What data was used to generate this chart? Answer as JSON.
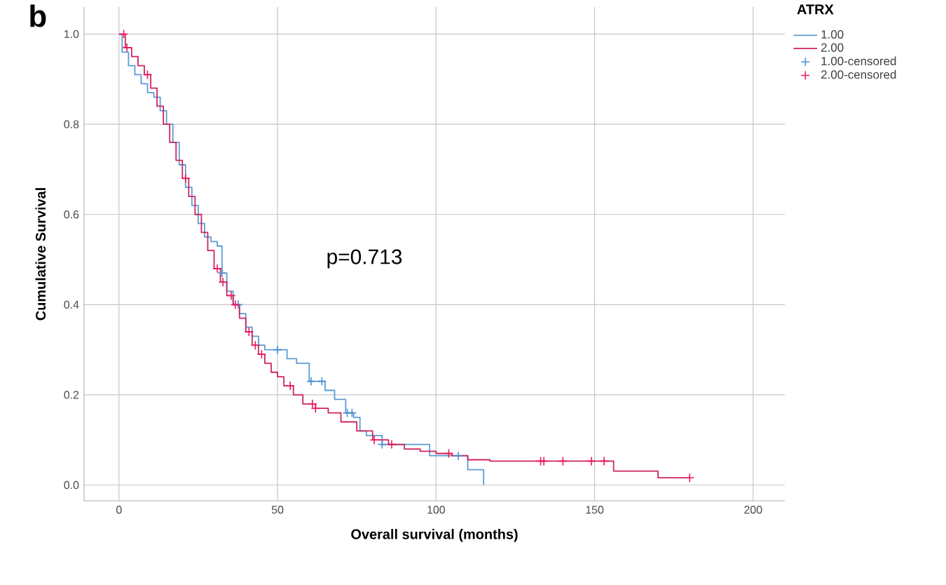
{
  "chart_data": {
    "type": "step",
    "title": "b",
    "xlabel": "Overall survival (months)",
    "ylabel": "Cumulative Survival",
    "legend_title": "ATRX",
    "annotations": [
      "p=0.713"
    ],
    "xlim": [
      -11,
      210
    ],
    "ylim": [
      -0.035,
      1.06
    ],
    "xticks": [
      0,
      50,
      100,
      150,
      200
    ],
    "yticks": [
      {
        "value": 0,
        "label": "0.0"
      },
      {
        "value": 0.2,
        "label": "0.2"
      },
      {
        "value": 0.4,
        "label": "0.4"
      },
      {
        "value": 0.6,
        "label": "0.6"
      },
      {
        "value": 0.8,
        "label": "0.8"
      },
      {
        "value": 1,
        "label": "1.0"
      }
    ],
    "grid": true,
    "legend": "top right",
    "line_style": "solid",
    "series": [
      {
        "name": "1.00",
        "color": "#5b9bd5",
        "marker": "none",
        "x": [
          0,
          1,
          3,
          5,
          7,
          9,
          11,
          13,
          15,
          17,
          19,
          21,
          23,
          25,
          27,
          29,
          31,
          32.5,
          34,
          36,
          38,
          40,
          42,
          44,
          46,
          50,
          53,
          56,
          60,
          63,
          65,
          68,
          71.5,
          74,
          76,
          78,
          83,
          90,
          98,
          110,
          115
        ],
        "values": [
          1.0,
          0.96,
          0.93,
          0.91,
          0.89,
          0.87,
          0.86,
          0.83,
          0.8,
          0.76,
          0.71,
          0.66,
          0.62,
          0.58,
          0.55,
          0.54,
          0.53,
          0.47,
          0.43,
          0.4,
          0.38,
          0.35,
          0.33,
          0.31,
          0.3,
          0.3,
          0.28,
          0.27,
          0.23,
          0.23,
          0.21,
          0.19,
          0.16,
          0.15,
          0.12,
          0.11,
          0.09,
          0.09,
          0.065,
          0.034,
          0.0
        ]
      },
      {
        "name": "2.00",
        "color": "#d0245c",
        "marker": "none",
        "x": [
          0,
          2,
          4,
          6,
          8,
          10,
          12,
          14,
          16,
          18,
          20,
          22,
          24,
          26,
          28,
          30,
          32,
          34,
          36,
          38,
          40,
          42,
          44,
          46,
          48,
          50,
          52,
          55,
          58,
          62,
          66,
          70,
          75,
          80,
          85,
          90,
          95,
          100,
          105,
          110,
          117,
          156,
          170,
          180
        ],
        "values": [
          1.0,
          0.97,
          0.95,
          0.93,
          0.91,
          0.88,
          0.84,
          0.8,
          0.76,
          0.72,
          0.68,
          0.64,
          0.6,
          0.56,
          0.52,
          0.48,
          0.45,
          0.42,
          0.4,
          0.37,
          0.34,
          0.31,
          0.29,
          0.27,
          0.25,
          0.24,
          0.22,
          0.2,
          0.18,
          0.17,
          0.16,
          0.14,
          0.12,
          0.1,
          0.09,
          0.08,
          0.075,
          0.07,
          0.065,
          0.056,
          0.053,
          0.031,
          0.016,
          0.016
        ]
      },
      {
        "name": "1.00-censored",
        "type": "scatter",
        "color": "#4a90d0",
        "marker": "cross",
        "x": [
          32.5,
          37.6,
          50,
          60.6,
          64,
          72,
          73.5,
          83,
          107
        ],
        "values": [
          0.47,
          0.4,
          0.3,
          0.23,
          0.23,
          0.16,
          0.16,
          0.09,
          0.065
        ]
      },
      {
        "name": "2.00-censored",
        "type": "scatter",
        "color": "#e8185c",
        "marker": "cross",
        "x": [
          1.5,
          2.5,
          9,
          21,
          31,
          32.8,
          35.4,
          36.7,
          41,
          43,
          45,
          54,
          61,
          62,
          80.5,
          86,
          104,
          133,
          134,
          140,
          149,
          153,
          180
        ],
        "values": [
          1.0,
          0.97,
          0.91,
          0.68,
          0.48,
          0.45,
          0.42,
          0.4,
          0.34,
          0.31,
          0.29,
          0.22,
          0.18,
          0.17,
          0.1,
          0.09,
          0.07,
          0.053,
          0.053,
          0.053,
          0.053,
          0.053,
          0.016
        ]
      }
    ]
  }
}
